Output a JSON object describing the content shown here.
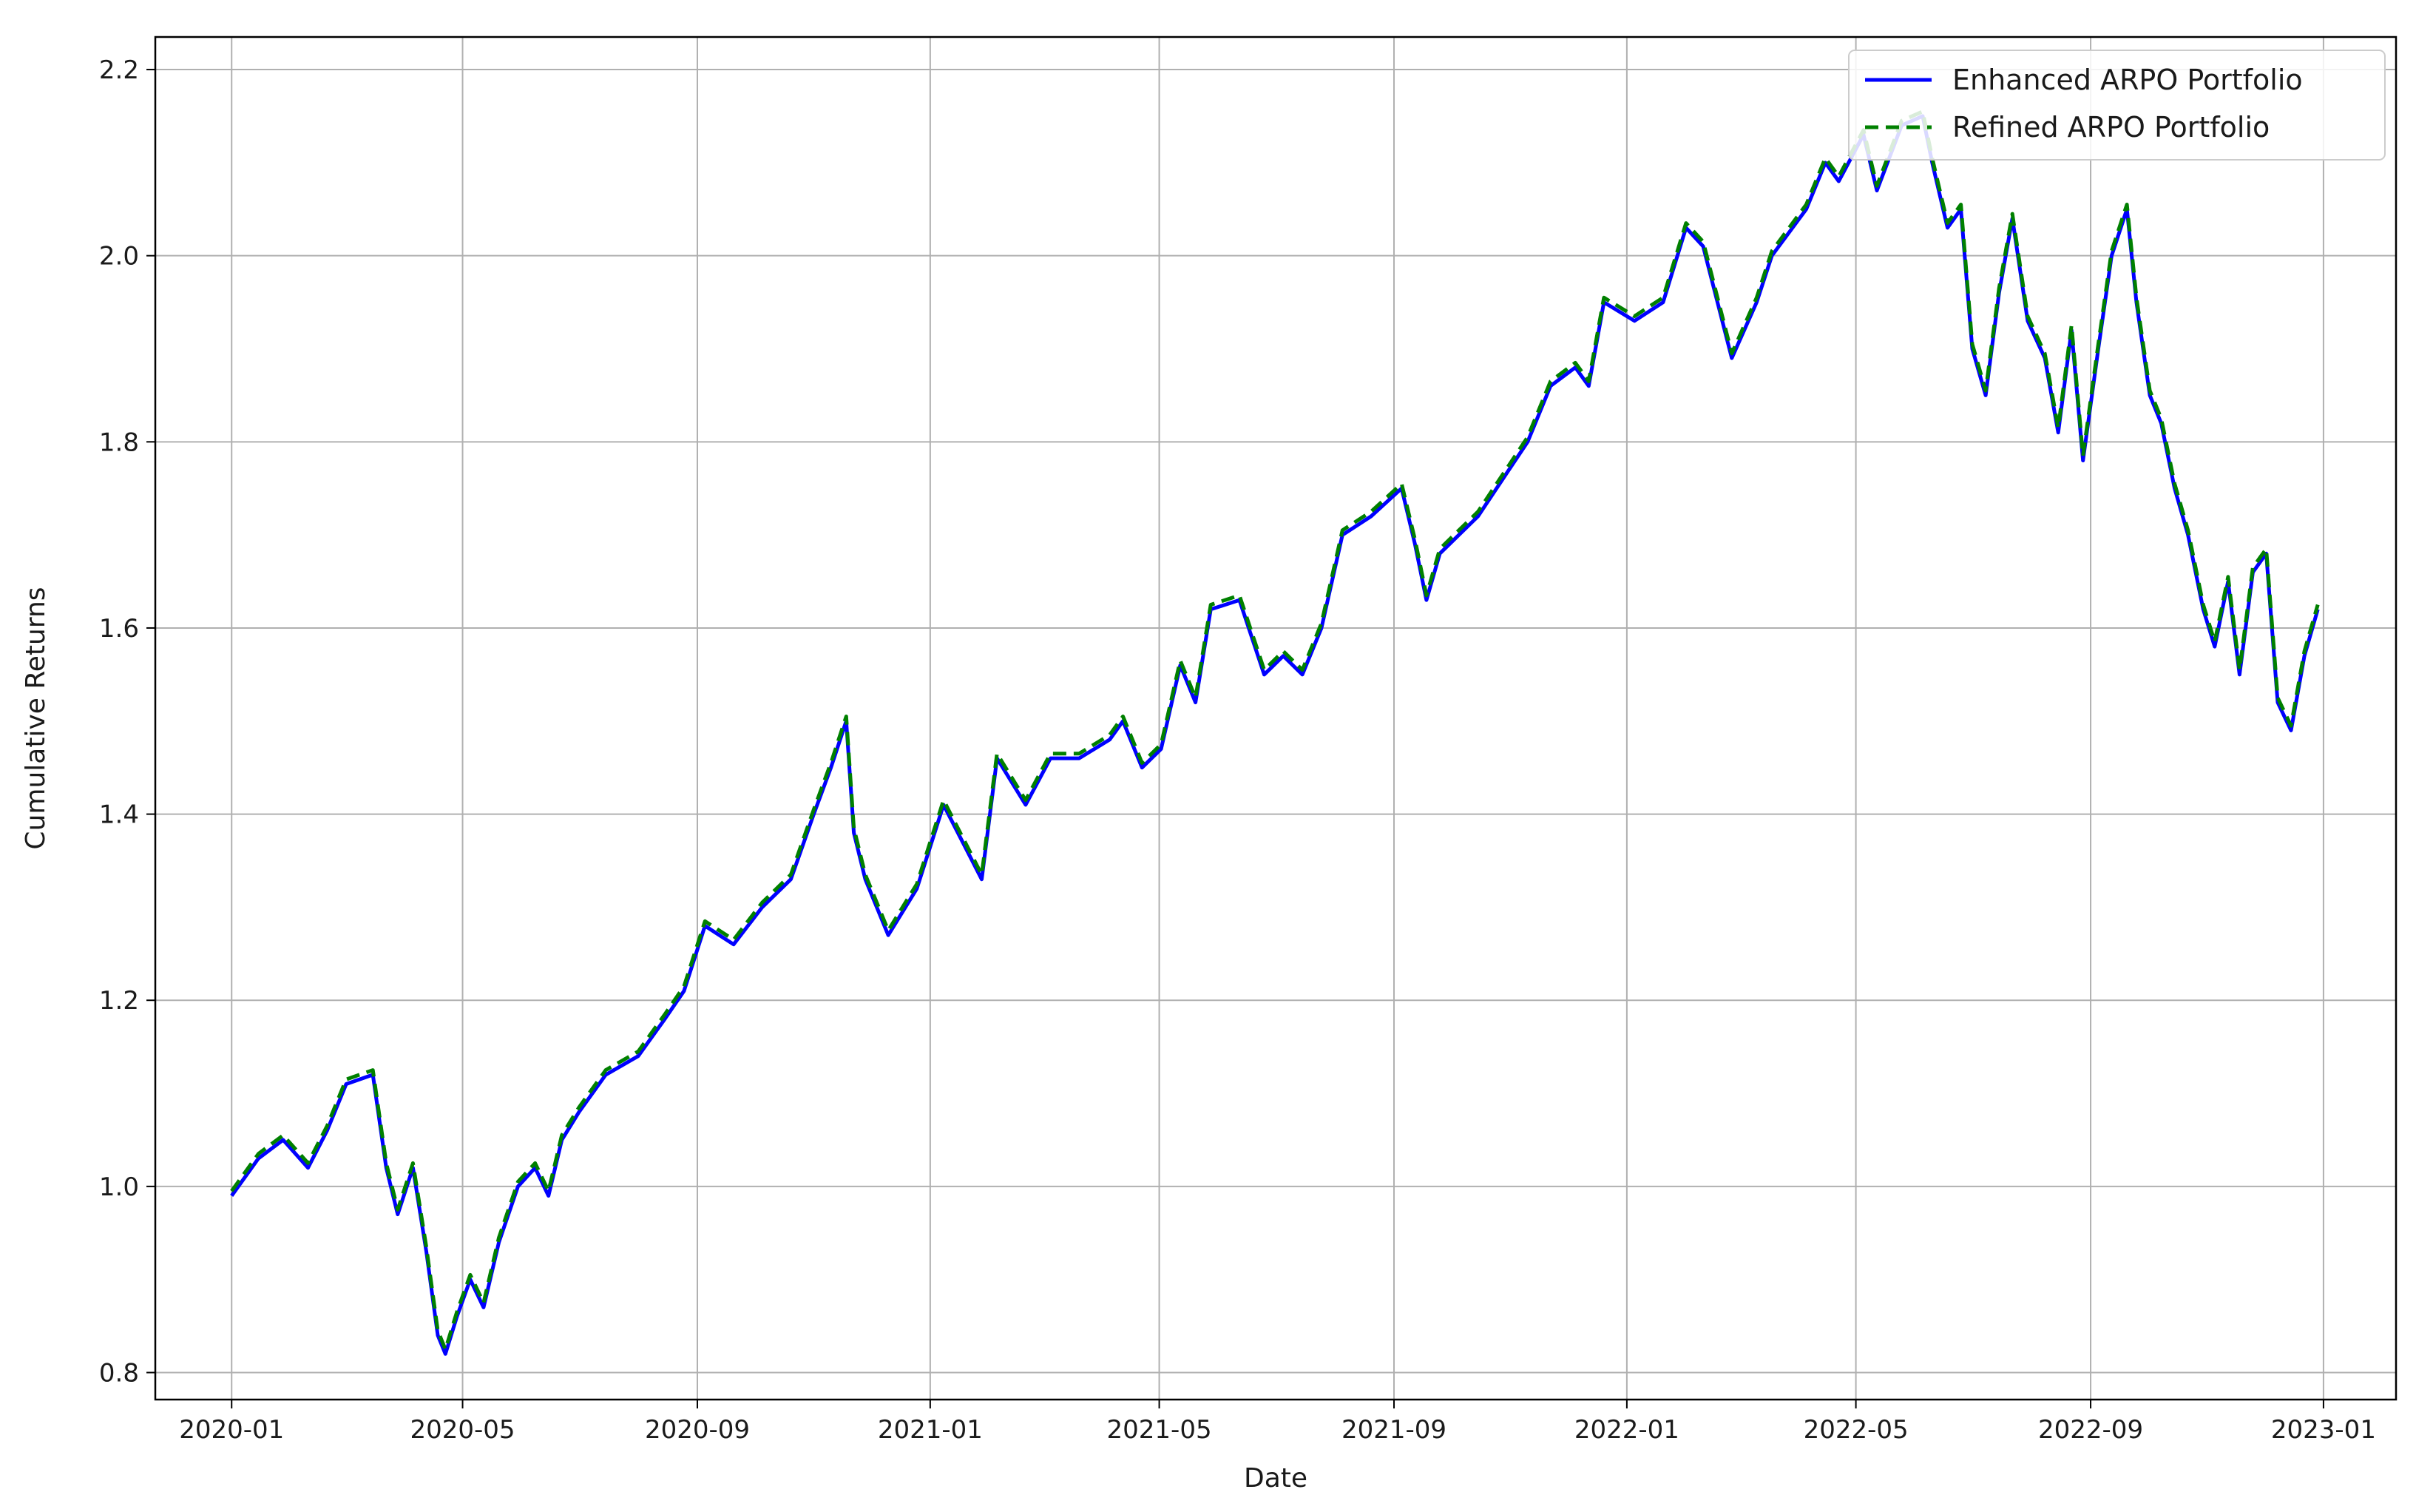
{
  "chart_data": {
    "type": "line",
    "title": "",
    "xlabel": "Date",
    "ylabel": "Cumulative Returns",
    "xlim": [
      "2019-11-22",
      "2023-02-08"
    ],
    "ylim": [
      0.771,
      2.235
    ],
    "x_ticks": [
      "2020-01",
      "2020-05",
      "2020-09",
      "2021-01",
      "2021-05",
      "2021-09",
      "2022-01",
      "2022-05",
      "2022-09",
      "2023-01"
    ],
    "y_ticks": [
      "0.8",
      "1.0",
      "1.2",
      "1.4",
      "1.6",
      "1.8",
      "2.0",
      "2.2"
    ],
    "grid": true,
    "legend": {
      "placement": "top-right"
    },
    "series": [
      {
        "name": "Enhanced ARPO Portfolio",
        "color": "#0000ff",
        "style": "solid",
        "points": [
          [
            "2020-01-01",
            0.99
          ],
          [
            "2020-01-15",
            1.03
          ],
          [
            "2020-01-28",
            1.05
          ],
          [
            "2020-02-10",
            1.02
          ],
          [
            "2020-02-20",
            1.06
          ],
          [
            "2020-03-01",
            1.11
          ],
          [
            "2020-03-15",
            1.12
          ],
          [
            "2020-03-22",
            1.02
          ],
          [
            "2020-03-28",
            0.97
          ],
          [
            "2020-04-05",
            1.02
          ],
          [
            "2020-04-12",
            0.93
          ],
          [
            "2020-04-18",
            0.84
          ],
          [
            "2020-04-22",
            0.82
          ],
          [
            "2020-04-28",
            0.86
          ],
          [
            "2020-05-05",
            0.9
          ],
          [
            "2020-05-12",
            0.87
          ],
          [
            "2020-05-20",
            0.94
          ],
          [
            "2020-05-30",
            1.0
          ],
          [
            "2020-06-08",
            1.02
          ],
          [
            "2020-06-15",
            0.99
          ],
          [
            "2020-06-22",
            1.05
          ],
          [
            "2020-07-01",
            1.08
          ],
          [
            "2020-07-15",
            1.12
          ],
          [
            "2020-08-01",
            1.14
          ],
          [
            "2020-08-15",
            1.18
          ],
          [
            "2020-08-25",
            1.21
          ],
          [
            "2020-09-05",
            1.28
          ],
          [
            "2020-09-20",
            1.26
          ],
          [
            "2020-10-05",
            1.3
          ],
          [
            "2020-10-20",
            1.33
          ],
          [
            "2020-11-01",
            1.4
          ],
          [
            "2020-11-10",
            1.45
          ],
          [
            "2020-11-18",
            1.5
          ],
          [
            "2020-11-22",
            1.38
          ],
          [
            "2020-11-28",
            1.33
          ],
          [
            "2020-12-10",
            1.27
          ],
          [
            "2020-12-25",
            1.32
          ],
          [
            "2021-01-08",
            1.41
          ],
          [
            "2021-01-18",
            1.37
          ],
          [
            "2021-01-28",
            1.33
          ],
          [
            "2021-02-05",
            1.46
          ],
          [
            "2021-02-20",
            1.41
          ],
          [
            "2021-03-05",
            1.46
          ],
          [
            "2021-03-20",
            1.46
          ],
          [
            "2021-04-05",
            1.48
          ],
          [
            "2021-04-12",
            1.5
          ],
          [
            "2021-04-22",
            1.45
          ],
          [
            "2021-05-02",
            1.47
          ],
          [
            "2021-05-12",
            1.56
          ],
          [
            "2021-05-20",
            1.52
          ],
          [
            "2021-05-28",
            1.62
          ],
          [
            "2021-06-12",
            1.63
          ],
          [
            "2021-06-25",
            1.55
          ],
          [
            "2021-07-05",
            1.57
          ],
          [
            "2021-07-15",
            1.55
          ],
          [
            "2021-07-25",
            1.6
          ],
          [
            "2021-08-05",
            1.7
          ],
          [
            "2021-08-20",
            1.72
          ],
          [
            "2021-09-05",
            1.75
          ],
          [
            "2021-09-12",
            1.69
          ],
          [
            "2021-09-18",
            1.63
          ],
          [
            "2021-09-25",
            1.68
          ],
          [
            "2021-10-05",
            1.7
          ],
          [
            "2021-10-15",
            1.72
          ],
          [
            "2021-10-28",
            1.76
          ],
          [
            "2021-11-10",
            1.8
          ],
          [
            "2021-11-22",
            1.86
          ],
          [
            "2021-12-05",
            1.88
          ],
          [
            "2021-12-12",
            1.86
          ],
          [
            "2021-12-20",
            1.95
          ],
          [
            "2022-01-05",
            1.93
          ],
          [
            "2022-01-20",
            1.95
          ],
          [
            "2022-02-01",
            2.03
          ],
          [
            "2022-02-10",
            2.01
          ],
          [
            "2022-02-25",
            1.89
          ],
          [
            "2022-03-10",
            1.95
          ],
          [
            "2022-03-18",
            2.0
          ],
          [
            "2022-04-05",
            2.05
          ],
          [
            "2022-04-15",
            2.1
          ],
          [
            "2022-04-22",
            2.08
          ],
          [
            "2022-05-05",
            2.13
          ],
          [
            "2022-05-12",
            2.07
          ],
          [
            "2022-05-25",
            2.14
          ],
          [
            "2022-06-05",
            2.15
          ],
          [
            "2022-06-10",
            2.1
          ],
          [
            "2022-06-18",
            2.03
          ],
          [
            "2022-06-25",
            2.05
          ],
          [
            "2022-07-01",
            1.9
          ],
          [
            "2022-07-08",
            1.85
          ],
          [
            "2022-07-15",
            1.96
          ],
          [
            "2022-07-22",
            2.04
          ],
          [
            "2022-07-30",
            1.93
          ],
          [
            "2022-08-08",
            1.89
          ],
          [
            "2022-08-15",
            1.81
          ],
          [
            "2022-08-22",
            1.92
          ],
          [
            "2022-08-28",
            1.78
          ],
          [
            "2022-09-05",
            1.9
          ],
          [
            "2022-09-12",
            2.0
          ],
          [
            "2022-09-20",
            2.05
          ],
          [
            "2022-09-25",
            1.95
          ],
          [
            "2022-10-02",
            1.85
          ],
          [
            "2022-10-08",
            1.82
          ],
          [
            "2022-10-15",
            1.75
          ],
          [
            "2022-10-22",
            1.7
          ],
          [
            "2022-10-30",
            1.62
          ],
          [
            "2022-11-05",
            1.58
          ],
          [
            "2022-11-12",
            1.65
          ],
          [
            "2022-11-18",
            1.55
          ],
          [
            "2022-11-25",
            1.66
          ],
          [
            "2022-12-02",
            1.68
          ],
          [
            "2022-12-08",
            1.52
          ],
          [
            "2022-12-15",
            1.49
          ],
          [
            "2022-12-22",
            1.57
          ],
          [
            "2022-12-29",
            1.62
          ]
        ]
      },
      {
        "name": "Refined ARPO Portfolio",
        "color": "#008000",
        "style": "dashed",
        "points": [
          [
            "2020-01-01",
            0.995
          ],
          [
            "2020-01-15",
            1.035
          ],
          [
            "2020-01-28",
            1.055
          ],
          [
            "2020-02-10",
            1.025
          ],
          [
            "2020-02-20",
            1.065
          ],
          [
            "2020-03-01",
            1.115
          ],
          [
            "2020-03-15",
            1.125
          ],
          [
            "2020-03-22",
            1.025
          ],
          [
            "2020-03-28",
            0.975
          ],
          [
            "2020-04-05",
            1.025
          ],
          [
            "2020-04-12",
            0.935
          ],
          [
            "2020-04-18",
            0.845
          ],
          [
            "2020-04-22",
            0.825
          ],
          [
            "2020-04-28",
            0.865
          ],
          [
            "2020-05-05",
            0.905
          ],
          [
            "2020-05-12",
            0.875
          ],
          [
            "2020-05-20",
            0.945
          ],
          [
            "2020-05-30",
            1.005
          ],
          [
            "2020-06-08",
            1.025
          ],
          [
            "2020-06-15",
            0.995
          ],
          [
            "2020-06-22",
            1.055
          ],
          [
            "2020-07-01",
            1.085
          ],
          [
            "2020-07-15",
            1.125
          ],
          [
            "2020-08-01",
            1.145
          ],
          [
            "2020-08-15",
            1.185
          ],
          [
            "2020-08-25",
            1.215
          ],
          [
            "2020-09-05",
            1.285
          ],
          [
            "2020-09-20",
            1.265
          ],
          [
            "2020-10-05",
            1.305
          ],
          [
            "2020-10-20",
            1.335
          ],
          [
            "2020-11-01",
            1.405
          ],
          [
            "2020-11-10",
            1.455
          ],
          [
            "2020-11-18",
            1.505
          ],
          [
            "2020-11-22",
            1.385
          ],
          [
            "2020-11-28",
            1.335
          ],
          [
            "2020-12-10",
            1.275
          ],
          [
            "2020-12-25",
            1.325
          ],
          [
            "2021-01-08",
            1.415
          ],
          [
            "2021-01-18",
            1.375
          ],
          [
            "2021-01-28",
            1.335
          ],
          [
            "2021-02-05",
            1.465
          ],
          [
            "2021-02-20",
            1.415
          ],
          [
            "2021-03-05",
            1.465
          ],
          [
            "2021-03-20",
            1.465
          ],
          [
            "2021-04-05",
            1.485
          ],
          [
            "2021-04-12",
            1.505
          ],
          [
            "2021-04-22",
            1.455
          ],
          [
            "2021-05-02",
            1.475
          ],
          [
            "2021-05-12",
            1.565
          ],
          [
            "2021-05-20",
            1.525
          ],
          [
            "2021-05-28",
            1.625
          ],
          [
            "2021-06-12",
            1.635
          ],
          [
            "2021-06-25",
            1.555
          ],
          [
            "2021-07-05",
            1.575
          ],
          [
            "2021-07-15",
            1.555
          ],
          [
            "2021-07-25",
            1.605
          ],
          [
            "2021-08-05",
            1.705
          ],
          [
            "2021-08-20",
            1.725
          ],
          [
            "2021-09-05",
            1.755
          ],
          [
            "2021-09-12",
            1.695
          ],
          [
            "2021-09-18",
            1.635
          ],
          [
            "2021-09-25",
            1.685
          ],
          [
            "2021-10-05",
            1.705
          ],
          [
            "2021-10-15",
            1.725
          ],
          [
            "2021-10-28",
            1.765
          ],
          [
            "2021-11-10",
            1.805
          ],
          [
            "2021-11-22",
            1.865
          ],
          [
            "2021-12-05",
            1.885
          ],
          [
            "2021-12-12",
            1.865
          ],
          [
            "2021-12-20",
            1.955
          ],
          [
            "2022-01-05",
            1.935
          ],
          [
            "2022-01-20",
            1.955
          ],
          [
            "2022-02-01",
            2.035
          ],
          [
            "2022-02-10",
            2.015
          ],
          [
            "2022-02-25",
            1.895
          ],
          [
            "2022-03-10",
            1.955
          ],
          [
            "2022-03-18",
            2.005
          ],
          [
            "2022-04-05",
            2.055
          ],
          [
            "2022-04-15",
            2.105
          ],
          [
            "2022-04-22",
            2.085
          ],
          [
            "2022-05-05",
            2.135
          ],
          [
            "2022-05-12",
            2.075
          ],
          [
            "2022-05-25",
            2.145
          ],
          [
            "2022-06-05",
            2.155
          ],
          [
            "2022-06-10",
            2.105
          ],
          [
            "2022-06-18",
            2.035
          ],
          [
            "2022-06-25",
            2.055
          ],
          [
            "2022-07-01",
            1.905
          ],
          [
            "2022-07-08",
            1.855
          ],
          [
            "2022-07-15",
            1.965
          ],
          [
            "2022-07-22",
            2.045
          ],
          [
            "2022-07-30",
            1.935
          ],
          [
            "2022-08-08",
            1.895
          ],
          [
            "2022-08-15",
            1.815
          ],
          [
            "2022-08-22",
            1.925
          ],
          [
            "2022-08-28",
            1.785
          ],
          [
            "2022-09-05",
            1.905
          ],
          [
            "2022-09-12",
            2.005
          ],
          [
            "2022-09-20",
            2.055
          ],
          [
            "2022-09-25",
            1.955
          ],
          [
            "2022-10-02",
            1.855
          ],
          [
            "2022-10-08",
            1.825
          ],
          [
            "2022-10-15",
            1.755
          ],
          [
            "2022-10-22",
            1.705
          ],
          [
            "2022-10-30",
            1.625
          ],
          [
            "2022-11-05",
            1.585
          ],
          [
            "2022-11-12",
            1.655
          ],
          [
            "2022-11-18",
            1.555
          ],
          [
            "2022-11-25",
            1.665
          ],
          [
            "2022-12-02",
            1.685
          ],
          [
            "2022-12-08",
            1.525
          ],
          [
            "2022-12-15",
            1.495
          ],
          [
            "2022-12-22",
            1.575
          ],
          [
            "2022-12-29",
            1.625
          ]
        ]
      }
    ]
  }
}
